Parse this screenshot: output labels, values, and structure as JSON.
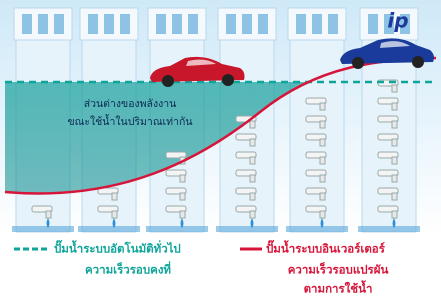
{
  "logo": "ip",
  "annotation": {
    "lines": [
      "ส่วนต่างของพลังงาน",
      "ขณะใช้น้ำในปริมาณเท่ากัน"
    ]
  },
  "legend": [
    {
      "label": "ปั๊มน้ำระบบอัตโนมัติทั่วไป",
      "sublabels": [
        "ความเร็วรอบคงที่"
      ]
    },
    {
      "label": "ปั๊มน้ำระบบอินเวอร์เตอร์",
      "sublabels": [
        "ความเร็วรอบแปรผัน",
        "ตามการใช้น้ำ"
      ]
    }
  ]
}
